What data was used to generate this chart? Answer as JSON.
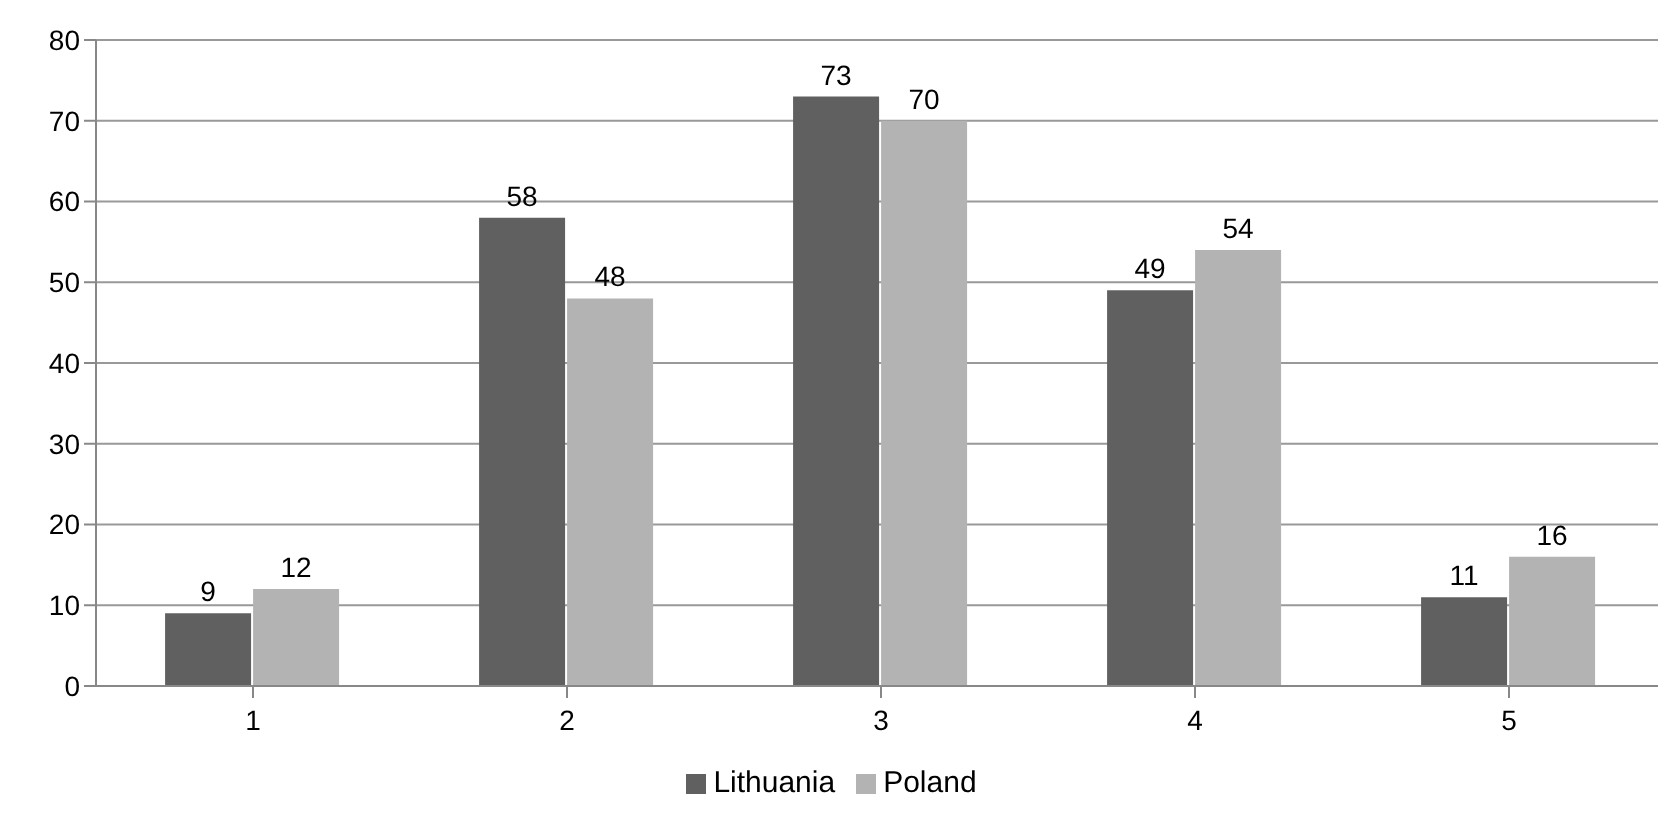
{
  "chart_data": {
    "type": "bar",
    "categories": [
      "1",
      "2",
      "3",
      "4",
      "5"
    ],
    "series": [
      {
        "name": "Lithuania",
        "color": "#606060",
        "values": [
          9,
          58,
          73,
          49,
          11
        ]
      },
      {
        "name": "Poland",
        "color": "#b3b3b3",
        "values": [
          12,
          48,
          70,
          54,
          16
        ]
      }
    ],
    "ylim": [
      0,
      80
    ],
    "yticks": [
      0,
      10,
      20,
      30,
      40,
      50,
      60,
      70,
      80
    ],
    "grid": "y",
    "legend": "bottom",
    "data_labels": true
  }
}
